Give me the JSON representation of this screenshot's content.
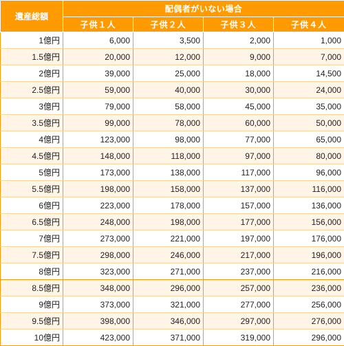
{
  "header": {
    "corner": "遺産総額",
    "group": "配偶者がいない場合",
    "columns": [
      "子供１人",
      "子供２人",
      "子供３人",
      "子供４人"
    ]
  },
  "rows": [
    {
      "label": "1億円",
      "values": [
        "6,000",
        "3,500",
        "2,000",
        "1,000"
      ]
    },
    {
      "label": "1.5億円",
      "values": [
        "20,000",
        "12,000",
        "9,000",
        "7,000"
      ]
    },
    {
      "label": "2億円",
      "values": [
        "39,000",
        "25,000",
        "18,000",
        "14,500"
      ]
    },
    {
      "label": "2.5億円",
      "values": [
        "59,000",
        "40,000",
        "30,000",
        "24,000"
      ]
    },
    {
      "label": "3億円",
      "values": [
        "79,000",
        "58,000",
        "45,000",
        "35,000"
      ]
    },
    {
      "label": "3.5億円",
      "values": [
        "99,000",
        "78,000",
        "60,000",
        "50,000"
      ]
    },
    {
      "label": "4億円",
      "values": [
        "123,000",
        "98,000",
        "77,000",
        "65,000"
      ]
    },
    {
      "label": "4.5億円",
      "values": [
        "148,000",
        "118,000",
        "97,000",
        "80,000"
      ]
    },
    {
      "label": "5億円",
      "values": [
        "173,000",
        "138,000",
        "117,000",
        "96,000"
      ]
    },
    {
      "label": "5.5億円",
      "values": [
        "198,000",
        "158,000",
        "137,000",
        "116,000"
      ]
    },
    {
      "label": "6億円",
      "values": [
        "223,000",
        "178,000",
        "157,000",
        "136,000"
      ]
    },
    {
      "label": "6.5億円",
      "values": [
        "248,000",
        "198,000",
        "177,000",
        "156,000"
      ]
    },
    {
      "label": "7億円",
      "values": [
        "273,000",
        "221,000",
        "197,000",
        "176,000"
      ]
    },
    {
      "label": "7.5億円",
      "values": [
        "298,000",
        "246,000",
        "217,000",
        "196,000"
      ]
    },
    {
      "label": "8億円",
      "values": [
        "323,000",
        "271,000",
        "237,000",
        "216,000"
      ]
    },
    {
      "label": "8.5億円",
      "values": [
        "348,000",
        "296,000",
        "257,000",
        "236,000"
      ]
    },
    {
      "label": "9億円",
      "values": [
        "373,000",
        "321,000",
        "277,000",
        "256,000"
      ]
    },
    {
      "label": "9.5億円",
      "values": [
        "398,000",
        "346,000",
        "297,000",
        "276,000"
      ]
    },
    {
      "label": "10億円",
      "values": [
        "423,000",
        "371,000",
        "319,000",
        "296,000"
      ]
    }
  ]
}
